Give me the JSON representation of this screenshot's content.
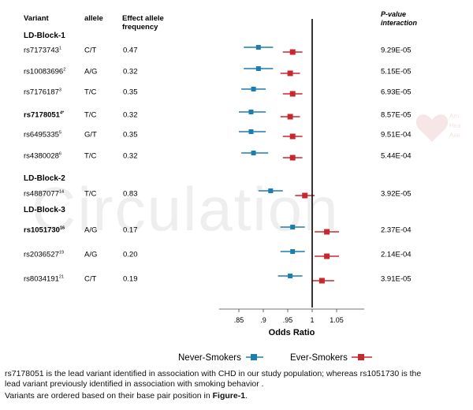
{
  "watermark": "Circulation",
  "headers": {
    "variant": "Variant",
    "allele": "allele",
    "freq_line1": "Effect allele",
    "freq_line2": "frequency",
    "pval_line1": "P-value",
    "pval_line2": "interaction"
  },
  "chart_data": {
    "type": "forest",
    "xlabel": "Odds Ratio",
    "x_ticks": [
      {
        "value": 0.85,
        "label": ".85"
      },
      {
        "value": 0.9,
        "label": ".9"
      },
      {
        "value": 0.95,
        "label": ".95"
      },
      {
        "value": 1.0,
        "label": "1"
      },
      {
        "value": 1.05,
        "label": "1.05"
      }
    ],
    "xlim": [
      0.8,
      1.12
    ],
    "reference_line": 1.0,
    "series": [
      {
        "name": "Never-Smokers",
        "color": "#1a7fae"
      },
      {
        "name": "Ever-Smokers",
        "color": "#c8282d"
      }
    ],
    "blocks": [
      {
        "name": "LD-Block-1",
        "rows": [
          {
            "variant": "rs7173743",
            "sup": "1",
            "allele": "C/T",
            "freq": "0.47",
            "p": "9.29E-05",
            "bold": false,
            "never": {
              "or": 0.89,
              "lo": 0.86,
              "hi": 0.92
            },
            "ever": {
              "or": 0.96,
              "lo": 0.94,
              "hi": 0.98
            }
          },
          {
            "variant": "rs10083696",
            "sup": "2",
            "allele": "A/G",
            "freq": "0.32",
            "p": "5.15E-05",
            "bold": false,
            "never": {
              "or": 0.89,
              "lo": 0.86,
              "hi": 0.92
            },
            "ever": {
              "or": 0.955,
              "lo": 0.935,
              "hi": 0.975
            }
          },
          {
            "variant": "rs7176187",
            "sup": "3",
            "allele": "T/C",
            "freq": "0.35",
            "p": "6.93E-05",
            "bold": false,
            "never": {
              "or": 0.88,
              "lo": 0.855,
              "hi": 0.905
            },
            "ever": {
              "or": 0.96,
              "lo": 0.94,
              "hi": 0.98
            }
          },
          {
            "variant": "rs7178051",
            "sup": "4*",
            "allele": "T/C",
            "freq": "0.32",
            "p": "8.57E-05",
            "bold": true,
            "never": {
              "or": 0.875,
              "lo": 0.85,
              "hi": 0.905
            },
            "ever": {
              "or": 0.955,
              "lo": 0.935,
              "hi": 0.975
            }
          },
          {
            "variant": "rs6495335",
            "sup": "5",
            "allele": "G/T",
            "freq": "0.35",
            "p": "9.51E-04",
            "bold": false,
            "never": {
              "or": 0.875,
              "lo": 0.85,
              "hi": 0.905
            },
            "ever": {
              "or": 0.96,
              "lo": 0.94,
              "hi": 0.98
            }
          },
          {
            "variant": "rs4380028",
            "sup": "6",
            "allele": "T/C",
            "freq": "0.32",
            "p": "5.44E-04",
            "bold": false,
            "never": {
              "or": 0.88,
              "lo": 0.855,
              "hi": 0.91
            },
            "ever": {
              "or": 0.96,
              "lo": 0.94,
              "hi": 0.98
            }
          }
        ]
      },
      {
        "name": "LD-Block-2",
        "rows": [
          {
            "variant": "rs4887077",
            "sup": "14",
            "allele": "T/C",
            "freq": "0.83",
            "p": "3.92E-05",
            "bold": false,
            "never": {
              "or": 0.915,
              "lo": 0.89,
              "hi": 0.94
            },
            "ever": {
              "or": 0.985,
              "lo": 0.965,
              "hi": 1.005
            }
          }
        ]
      },
      {
        "name": "LD-Block-3",
        "rows": [
          {
            "variant": "rs1051730",
            "sup": "16",
            "allele": "A/G",
            "freq": "0.17",
            "p": "2.37E-04",
            "bold": true,
            "never": {
              "or": 0.96,
              "lo": 0.935,
              "hi": 0.985
            },
            "ever": {
              "or": 1.03,
              "lo": 1.005,
              "hi": 1.055
            }
          },
          {
            "variant": "rs2036527",
            "sup": "19",
            "allele": "A/G",
            "freq": "0.20",
            "p": "2.14E-04",
            "bold": false,
            "never": {
              "or": 0.96,
              "lo": 0.935,
              "hi": 0.985
            },
            "ever": {
              "or": 1.03,
              "lo": 1.005,
              "hi": 1.055
            }
          }
        ]
      },
      {
        "name": "",
        "rows": [
          {
            "variant": "rs8034191",
            "sup": "21",
            "allele": "C/T",
            "freq": "0.19",
            "p": "3.91E-05",
            "bold": false,
            "never": {
              "or": 0.955,
              "lo": 0.93,
              "hi": 0.98
            },
            "ever": {
              "or": 1.02,
              "lo": 1.0,
              "hi": 1.045
            }
          }
        ]
      }
    ]
  },
  "caption": {
    "line1": "rs7178051 is the lead variant identified in association with CHD in our study population; whereas rs1051730 is the",
    "line2": "lead variant previously identified in association with smoking behavior .",
    "line3_prefix": "Variants are ordered based on their base pair position in ",
    "line3_bold": "Figure-1",
    "line3_suffix": "."
  }
}
